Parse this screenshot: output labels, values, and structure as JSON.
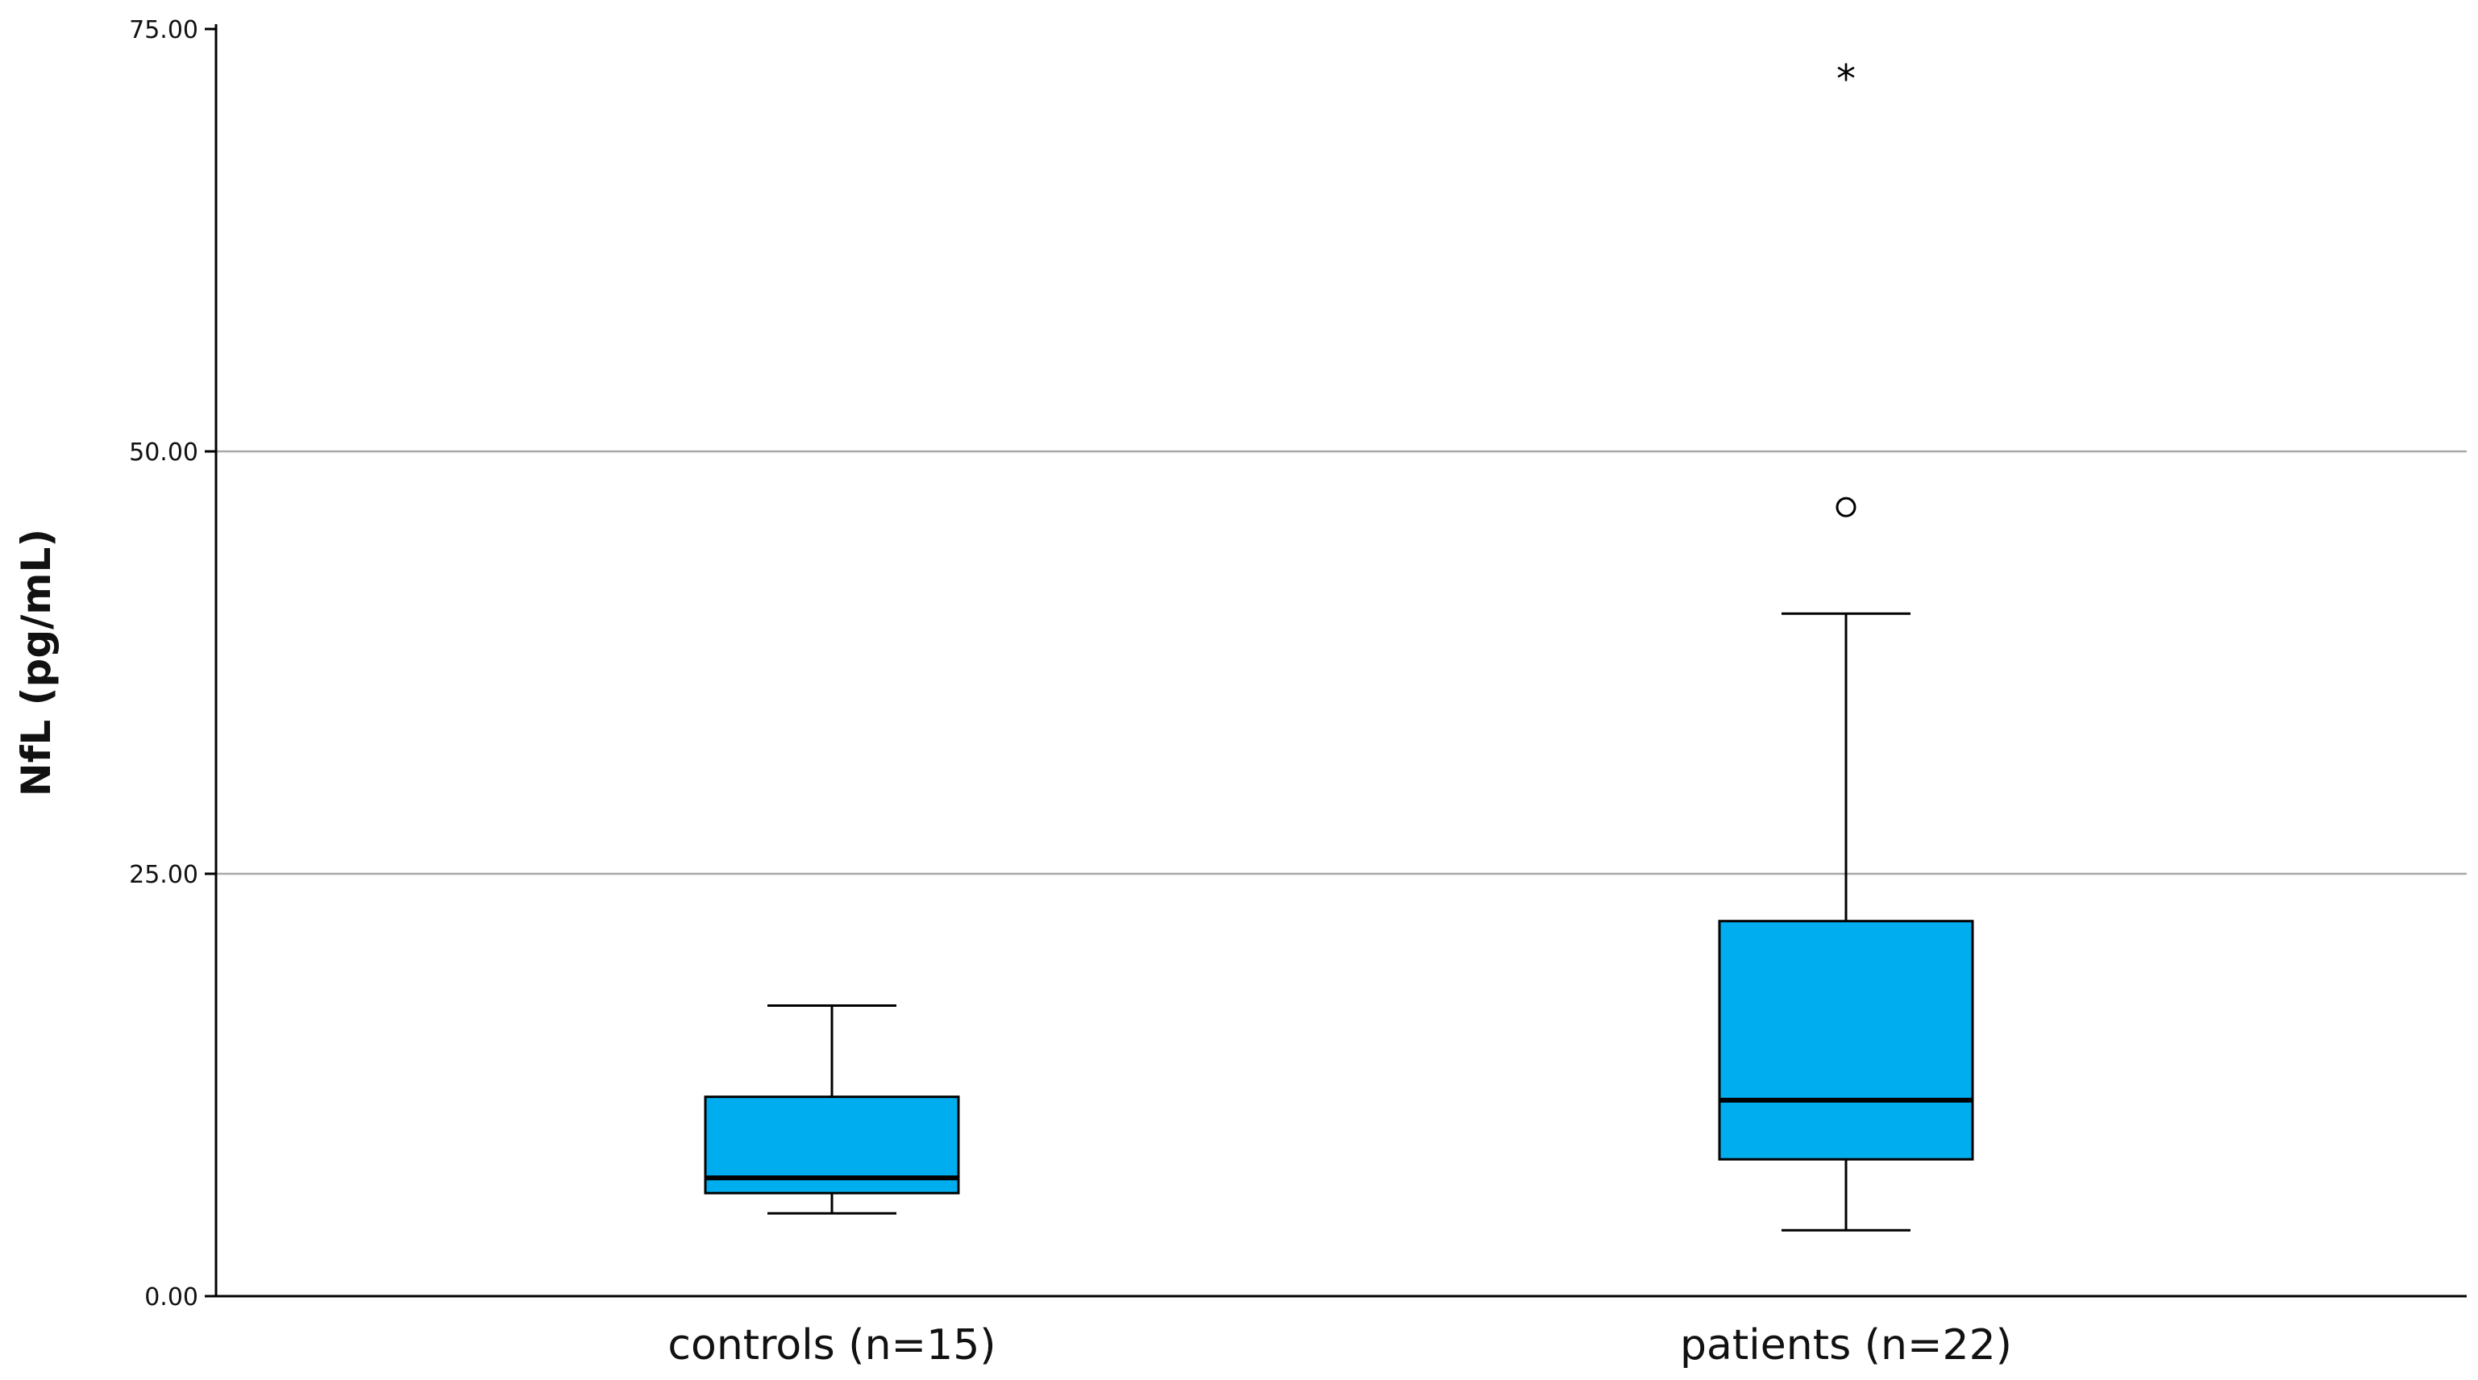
{
  "chart_data": {
    "type": "boxplot",
    "categories": [
      "controls (n=15)",
      "patients (n=22)"
    ],
    "ylabel": "NfL (pg/mL)",
    "xlabel": "",
    "ylim": [
      0,
      75
    ],
    "yticks": [
      0,
      25,
      50,
      75
    ],
    "ytick_labels": [
      "0.00",
      "25.00",
      "50.00",
      "75.00"
    ],
    "grid": "horizontal",
    "box_color": "#00aeef",
    "boxes": [
      {
        "category": "controls (n=15)",
        "whisker_low": 4.9,
        "q1": 6.1,
        "median": 7.0,
        "q3": 11.8,
        "whisker_high": 17.2,
        "outliers": [],
        "extremes": []
      },
      {
        "category": "patients (n=22)",
        "whisker_low": 3.9,
        "q1": 8.1,
        "median": 11.6,
        "q3": 22.2,
        "whisker_high": 40.4,
        "outliers": [
          46.7
        ],
        "extremes": [
          72.3
        ]
      }
    ]
  }
}
